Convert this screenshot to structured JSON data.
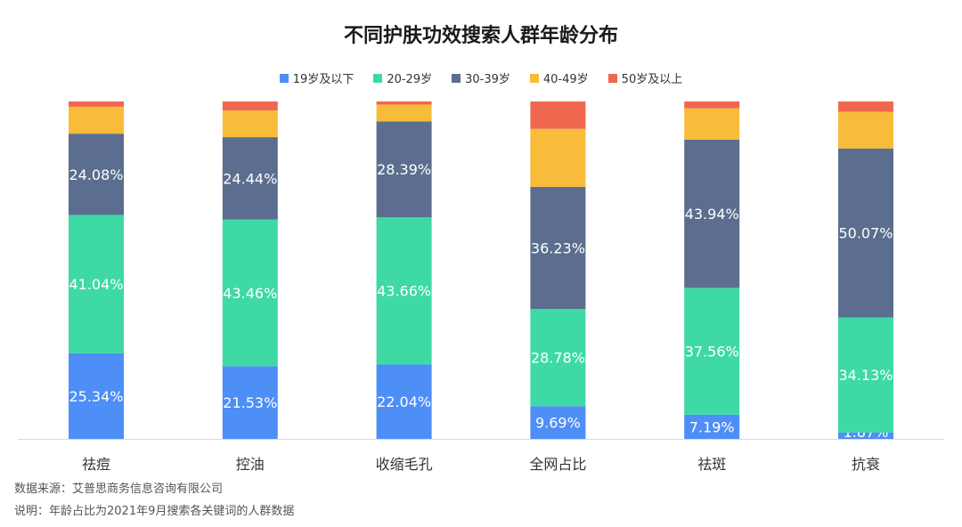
{
  "chart_data": {
    "type": "bar",
    "stacked": true,
    "title": "不同护肤功效搜索人群年龄分布",
    "categories": [
      "祛痘",
      "控油",
      "收缩毛孔",
      "全网占比",
      "祛斑",
      "抗衰"
    ],
    "series": [
      {
        "name": "19岁及以下",
        "color": "#4e8ef7",
        "values": [
          25.34,
          21.53,
          22.04,
          9.69,
          7.19,
          1.87
        ]
      },
      {
        "name": "20-29岁",
        "color": "#3fd9a6",
        "values": [
          41.04,
          43.46,
          43.66,
          28.78,
          37.56,
          34.13
        ]
      },
      {
        "name": "30-39岁",
        "color": "#5b6e8f",
        "values": [
          24.08,
          24.44,
          28.39,
          36.23,
          43.94,
          50.07
        ]
      },
      {
        "name": "40-49岁",
        "color": "#f9bb3a",
        "values": [
          8.0,
          7.9,
          5.0,
          17.2,
          9.3,
          10.9
        ]
      },
      {
        "name": "50岁及以上",
        "color": "#f0674f",
        "values": [
          1.54,
          2.67,
          0.91,
          8.1,
          2.01,
          3.03
        ]
      }
    ],
    "labeled_series": [
      "19岁及以下",
      "20-29岁",
      "30-39岁"
    ],
    "ylim": [
      0,
      100
    ],
    "legend": "top-center",
    "grid": false
  },
  "footer": {
    "source": "数据来源：艾普思商务信息咨询有限公司",
    "note": "说明：年龄占比为2021年9月搜索各关键词的人群数据"
  }
}
